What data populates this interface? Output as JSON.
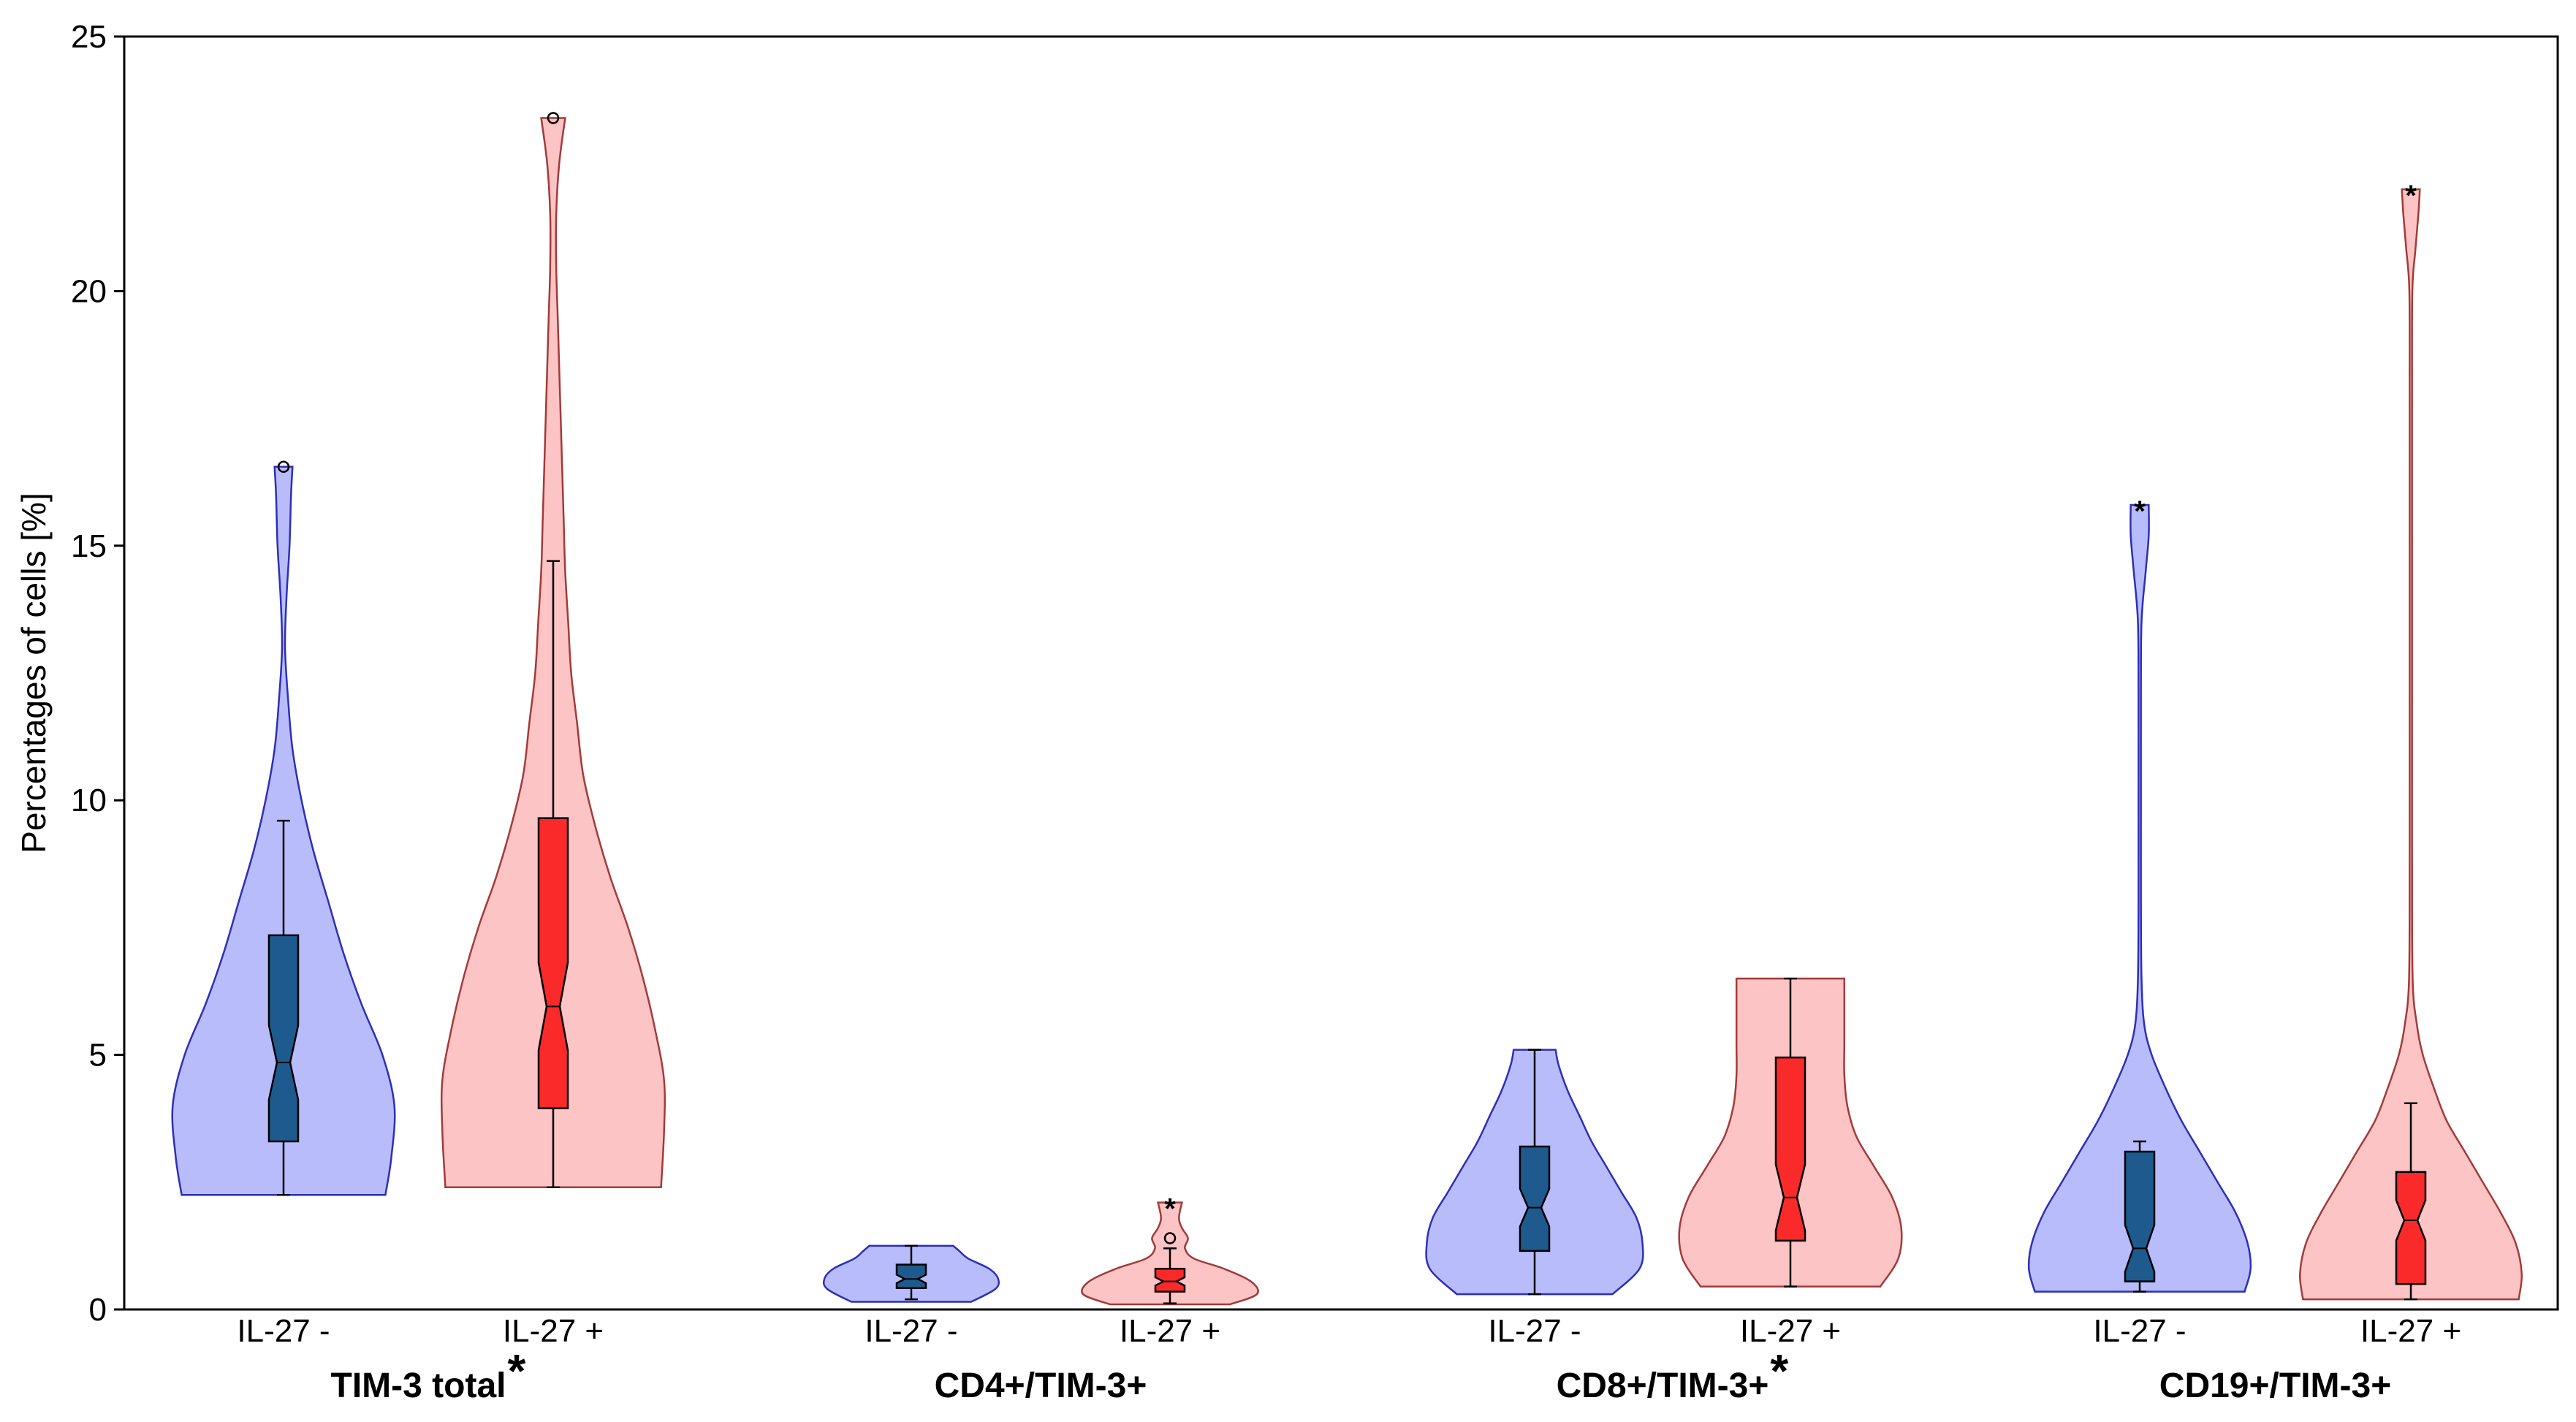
{
  "colors": {
    "il27_neg_fill": "#b9bcfb",
    "il27_neg_line": "#2c2fb8",
    "il27_neg_box": "#1e5a8e",
    "il27_pos_fill": "#fcc4c4",
    "il27_pos_line": "#a33a3a",
    "il27_pos_box": "#fb2a2a"
  },
  "chart_data": {
    "type": "violin",
    "ylabel": "Percentages of cells [%]",
    "ylim": [
      0,
      25
    ],
    "yticks": [
      0,
      5,
      10,
      15,
      20,
      25
    ],
    "yticks_labels": [
      "0",
      "5",
      "10",
      "15",
      "20",
      "25"
    ],
    "groups": [
      {
        "label": "TIM-3 total",
        "significance": "*",
        "series": [
          {
            "name": "IL-27 -",
            "condition": "neg",
            "min": 2.25,
            "q1": 3.3,
            "median": 4.85,
            "q3": 7.35,
            "whisker_low": 2.25,
            "whisker_high": 9.6,
            "max": 16.55,
            "outliers": [
              {
                "value": 16.55,
                "marker": "circle"
              }
            ],
            "density": [
              [
                2.25,
                0.34
              ],
              [
                3.0,
                0.36
              ],
              [
                4.0,
                0.37
              ],
              [
                5.0,
                0.33
              ],
              [
                6.0,
                0.26
              ],
              [
                7.0,
                0.2
              ],
              [
                8.0,
                0.15
              ],
              [
                9.0,
                0.1
              ],
              [
                10.0,
                0.06
              ],
              [
                11.0,
                0.03
              ],
              [
                12.0,
                0.015
              ],
              [
                13.0,
                0.005
              ],
              [
                14.0,
                0.01
              ],
              [
                15.0,
                0.02
              ],
              [
                16.0,
                0.025
              ],
              [
                16.55,
                0.03
              ]
            ]
          },
          {
            "name": "IL-27 +",
            "condition": "pos",
            "min": 2.4,
            "q1": 3.95,
            "median": 5.95,
            "q3": 9.65,
            "whisker_low": 2.4,
            "whisker_high": 14.7,
            "max": 23.4,
            "outliers": [
              {
                "value": 23.4,
                "marker": "circle"
              }
            ],
            "density": [
              [
                2.4,
                0.36
              ],
              [
                3.5,
                0.37
              ],
              [
                4.5,
                0.37
              ],
              [
                5.5,
                0.34
              ],
              [
                6.5,
                0.3
              ],
              [
                7.5,
                0.25
              ],
              [
                8.5,
                0.19
              ],
              [
                9.5,
                0.14
              ],
              [
                10.5,
                0.1
              ],
              [
                11.5,
                0.08
              ],
              [
                12.5,
                0.06
              ],
              [
                13.5,
                0.05
              ],
              [
                14.5,
                0.04
              ],
              [
                15.5,
                0.035
              ],
              [
                16.5,
                0.03
              ],
              [
                17.5,
                0.025
              ],
              [
                18.5,
                0.02
              ],
              [
                19.5,
                0.015
              ],
              [
                20.5,
                0.01
              ],
              [
                21.5,
                0.01
              ],
              [
                22.5,
                0.02
              ],
              [
                23.4,
                0.04
              ]
            ]
          }
        ]
      },
      {
        "label": "CD4+/TIM-3+",
        "significance": "",
        "series": [
          {
            "name": "IL-27 -",
            "condition": "neg",
            "min": 0.2,
            "q1": 0.42,
            "median": 0.6,
            "q3": 0.88,
            "whisker_low": 0.2,
            "whisker_high": 1.25,
            "max": 1.25,
            "outliers": [],
            "density": [
              [
                0.15,
                0.2
              ],
              [
                0.4,
                0.28
              ],
              [
                0.6,
                0.29
              ],
              [
                0.8,
                0.26
              ],
              [
                1.0,
                0.19
              ],
              [
                1.15,
                0.16
              ],
              [
                1.25,
                0.14
              ]
            ]
          },
          {
            "name": "IL-27 +",
            "condition": "pos",
            "min": 0.12,
            "q1": 0.35,
            "median": 0.55,
            "q3": 0.8,
            "whisker_low": 0.12,
            "whisker_high": 1.2,
            "max": 2.1,
            "outliers": [
              {
                "value": 1.4,
                "marker": "circle"
              },
              {
                "value": 2.1,
                "marker": "star"
              }
            ],
            "density": [
              [
                0.1,
                0.2
              ],
              [
                0.3,
                0.29
              ],
              [
                0.55,
                0.27
              ],
              [
                0.8,
                0.18
              ],
              [
                1.0,
                0.08
              ],
              [
                1.2,
                0.05
              ],
              [
                1.4,
                0.06
              ],
              [
                1.6,
                0.04
              ],
              [
                1.8,
                0.03
              ],
              [
                2.1,
                0.04
              ]
            ]
          }
        ]
      },
      {
        "label": "CD8+/TIM-3+",
        "significance": "*",
        "series": [
          {
            "name": "IL-27 -",
            "condition": "neg",
            "min": 0.3,
            "q1": 1.15,
            "median": 2.0,
            "q3": 3.2,
            "whisker_low": 0.3,
            "whisker_high": 5.1,
            "max": 5.1,
            "outliers": [],
            "density": [
              [
                0.3,
                0.26
              ],
              [
                0.8,
                0.35
              ],
              [
                1.3,
                0.36
              ],
              [
                1.8,
                0.34
              ],
              [
                2.3,
                0.29
              ],
              [
                2.8,
                0.24
              ],
              [
                3.3,
                0.19
              ],
              [
                3.8,
                0.15
              ],
              [
                4.3,
                0.11
              ],
              [
                4.8,
                0.08
              ],
              [
                5.1,
                0.07
              ]
            ]
          },
          {
            "name": "IL-27 +",
            "condition": "pos",
            "min": 0.45,
            "q1": 1.35,
            "median": 2.2,
            "q3": 4.95,
            "whisker_low": 0.45,
            "whisker_high": 6.5,
            "max": 6.5,
            "outliers": [],
            "density": [
              [
                0.45,
                0.3
              ],
              [
                1.0,
                0.36
              ],
              [
                1.6,
                0.37
              ],
              [
                2.2,
                0.34
              ],
              [
                2.8,
                0.28
              ],
              [
                3.4,
                0.22
              ],
              [
                4.0,
                0.19
              ],
              [
                4.6,
                0.18
              ],
              [
                5.2,
                0.18
              ],
              [
                5.8,
                0.18
              ],
              [
                6.5,
                0.18
              ]
            ]
          }
        ]
      },
      {
        "label": "CD19+/TIM-3+",
        "significance": "",
        "series": [
          {
            "name": "IL-27 -",
            "condition": "neg",
            "min": 0.35,
            "q1": 0.55,
            "median": 1.2,
            "q3": 3.1,
            "whisker_low": 0.35,
            "whisker_high": 3.3,
            "max": 15.8,
            "outliers": [
              {
                "value": 15.8,
                "marker": "star"
              }
            ],
            "density": [
              [
                0.35,
                0.35
              ],
              [
                0.8,
                0.37
              ],
              [
                1.3,
                0.36
              ],
              [
                1.9,
                0.32
              ],
              [
                2.5,
                0.26
              ],
              [
                3.1,
                0.2
              ],
              [
                3.7,
                0.14
              ],
              [
                4.3,
                0.09
              ],
              [
                5.0,
                0.04
              ],
              [
                5.6,
                0.015
              ],
              [
                6.5,
                0.006
              ],
              [
                8.0,
                0.004
              ],
              [
                10.0,
                0.004
              ],
              [
                12.0,
                0.004
              ],
              [
                13.5,
                0.006
              ],
              [
                14.5,
                0.02
              ],
              [
                15.2,
                0.03
              ],
              [
                15.8,
                0.03
              ]
            ]
          },
          {
            "name": "IL-27 +",
            "condition": "pos",
            "min": 0.2,
            "q1": 0.5,
            "median": 1.75,
            "q3": 2.7,
            "whisker_low": 0.2,
            "whisker_high": 4.05,
            "max": 22.0,
            "outliers": [
              {
                "value": 22.0,
                "marker": "star"
              }
            ],
            "density": [
              [
                0.2,
                0.36
              ],
              [
                0.7,
                0.37
              ],
              [
                1.3,
                0.35
              ],
              [
                1.9,
                0.3
              ],
              [
                2.5,
                0.24
              ],
              [
                3.1,
                0.18
              ],
              [
                3.7,
                0.12
              ],
              [
                4.3,
                0.08
              ],
              [
                5.0,
                0.04
              ],
              [
                5.6,
                0.02
              ],
              [
                6.5,
                0.006
              ],
              [
                9.0,
                0.004
              ],
              [
                12.0,
                0.004
              ],
              [
                15.0,
                0.004
              ],
              [
                18.0,
                0.004
              ],
              [
                20.0,
                0.005
              ],
              [
                20.8,
                0.015
              ],
              [
                21.5,
                0.025
              ],
              [
                22.0,
                0.03
              ]
            ]
          }
        ]
      }
    ]
  }
}
